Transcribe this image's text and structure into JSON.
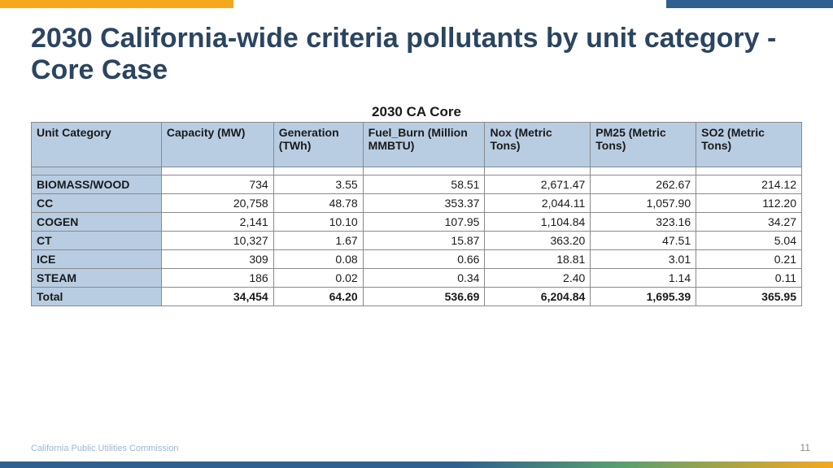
{
  "title": "2030 California-wide criteria pollutants by unit category - Core Case",
  "table": {
    "caption": "2030 CA Core",
    "columns": [
      "Unit Category",
      "Capacity (MW)",
      "Generation (TWh)",
      "Fuel_Burn (Million MMBTU)",
      "Nox (Metric Tons)",
      "PM25 (Metric Tons)",
      "SO2 (Metric Tons)"
    ],
    "rows": [
      [
        "BIOMASS/WOOD",
        "734",
        "3.55",
        "58.51",
        "2,671.47",
        "262.67",
        "214.12"
      ],
      [
        "CC",
        "20,758",
        "48.78",
        "353.37",
        "2,044.11",
        "1,057.90",
        "112.20"
      ],
      [
        "COGEN",
        "2,141",
        "10.10",
        "107.95",
        "1,104.84",
        "323.16",
        "34.27"
      ],
      [
        "CT",
        "10,327",
        "1.67",
        "15.87",
        "363.20",
        "47.51",
        "5.04"
      ],
      [
        "ICE",
        "309",
        "0.08",
        "0.66",
        "18.81",
        "3.01",
        "0.21"
      ],
      [
        "STEAM",
        "186",
        "0.02",
        "0.34",
        "2.40",
        "1.14",
        "0.11"
      ]
    ],
    "total": [
      "Total",
      "34,454",
      "64.20",
      "536.69",
      "6,204.84",
      "1,695.39",
      "365.95"
    ]
  },
  "footer": {
    "org": "California Public Utilities Commission",
    "page": "11"
  },
  "style": {
    "title_color": "#2b4560",
    "header_bg": "#b8cde2",
    "accent_orange": "#f6a81c",
    "accent_blue": "#2f5f8f",
    "accent_green": "#5aa06e"
  }
}
